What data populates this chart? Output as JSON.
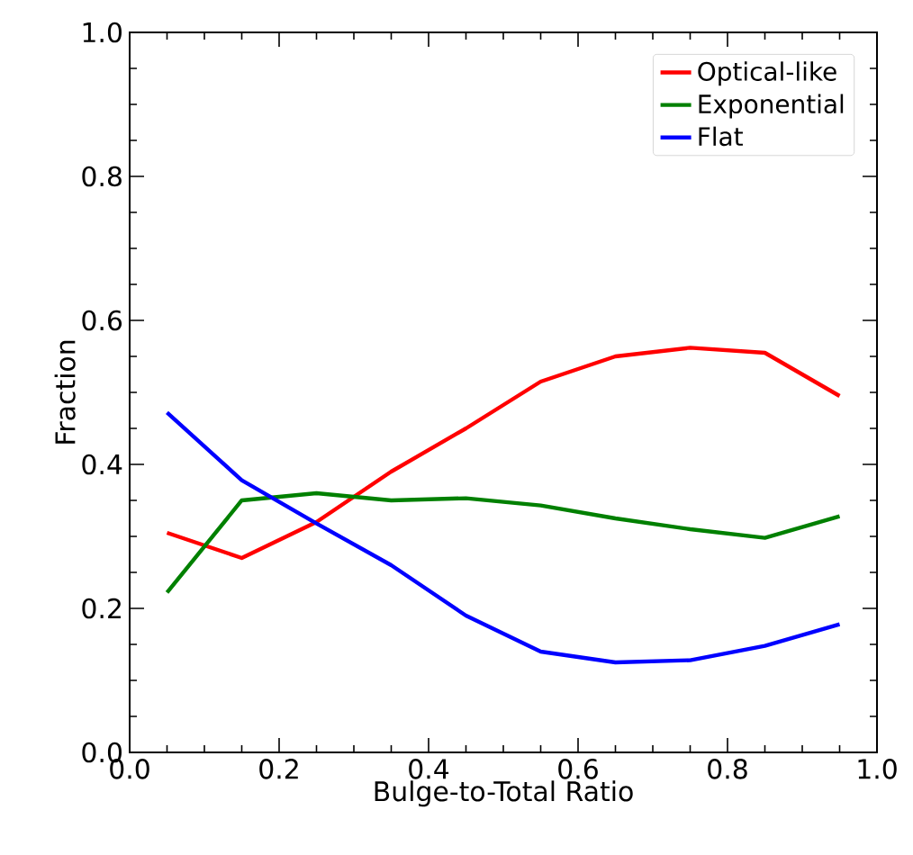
{
  "chart_data": {
    "type": "line",
    "xlabel": "Bulge-to-Total Ratio",
    "ylabel": "Fraction",
    "x": [
      0.05,
      0.15,
      0.25,
      0.35,
      0.45,
      0.55,
      0.65,
      0.75,
      0.85,
      0.95
    ],
    "series": [
      {
        "name": "Optical-like",
        "color": "#ff0000",
        "values": [
          0.305,
          0.27,
          0.32,
          0.39,
          0.45,
          0.515,
          0.55,
          0.562,
          0.555,
          0.495
        ]
      },
      {
        "name": "Exponential",
        "color": "#008000",
        "values": [
          0.222,
          0.35,
          0.36,
          0.35,
          0.353,
          0.343,
          0.325,
          0.31,
          0.298,
          0.328
        ]
      },
      {
        "name": "Flat",
        "color": "#0000ff",
        "values": [
          0.472,
          0.378,
          0.318,
          0.26,
          0.19,
          0.14,
          0.125,
          0.128,
          0.148,
          0.178
        ]
      }
    ],
    "xlim": [
      0,
      1
    ],
    "ylim": [
      0,
      1
    ],
    "xticks": [
      {
        "value": 0,
        "label": "0.0"
      },
      0.2,
      0.4,
      0.6,
      0.8,
      {
        "value": 1,
        "label": "1.0"
      }
    ],
    "yticks": [
      {
        "value": 0,
        "label": "0.0"
      },
      0.2,
      0.4,
      0.6,
      0.8,
      {
        "value": 1,
        "label": "1.0"
      }
    ],
    "legend": "top right",
    "grid": false
  }
}
